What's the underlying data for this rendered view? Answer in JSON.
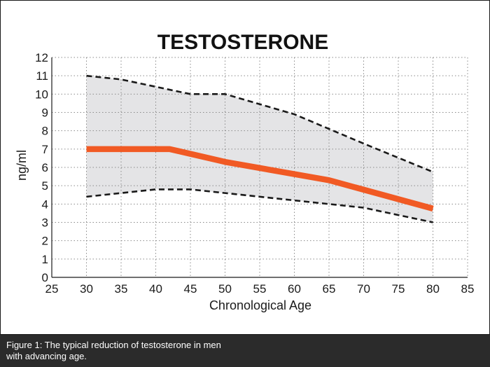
{
  "chart_data": {
    "type": "line",
    "title": "TESTOSTERONE",
    "xlabel": "Chronological Age",
    "ylabel": "ng/ml",
    "xlim": [
      25,
      85
    ],
    "ylim": [
      0,
      12
    ],
    "x_ticks": [
      25,
      30,
      35,
      40,
      45,
      50,
      55,
      60,
      65,
      70,
      75,
      80,
      85
    ],
    "y_ticks": [
      0,
      1,
      2,
      3,
      4,
      5,
      6,
      7,
      8,
      9,
      10,
      11,
      12
    ],
    "grid": true,
    "series": [
      {
        "role": "mean",
        "style": "solid-thick",
        "color": "#f15a24",
        "points": [
          [
            30,
            7.0
          ],
          [
            42,
            7.0
          ],
          [
            50,
            6.3
          ],
          [
            65,
            5.3
          ],
          [
            80,
            3.75
          ]
        ]
      },
      {
        "role": "upper-range",
        "style": "dashed",
        "color": "#1a1a1a",
        "points": [
          [
            30,
            11.0
          ],
          [
            35,
            10.8
          ],
          [
            40,
            10.4
          ],
          [
            45,
            10.0
          ],
          [
            50,
            10.0
          ],
          [
            60,
            8.9
          ],
          [
            70,
            7.3
          ],
          [
            80,
            5.75
          ]
        ]
      },
      {
        "role": "lower-range",
        "style": "dashed",
        "color": "#1a1a1a",
        "points": [
          [
            30,
            4.4
          ],
          [
            35,
            4.6
          ],
          [
            40,
            4.8
          ],
          [
            45,
            4.8
          ],
          [
            50,
            4.6
          ],
          [
            60,
            4.2
          ],
          [
            70,
            3.8
          ],
          [
            80,
            3.0
          ]
        ]
      }
    ],
    "band_color": "#e4e4e6"
  },
  "caption": {
    "line1": "Figure 1: The typical reduction of testosterone in men",
    "line2": "with advancing age."
  }
}
